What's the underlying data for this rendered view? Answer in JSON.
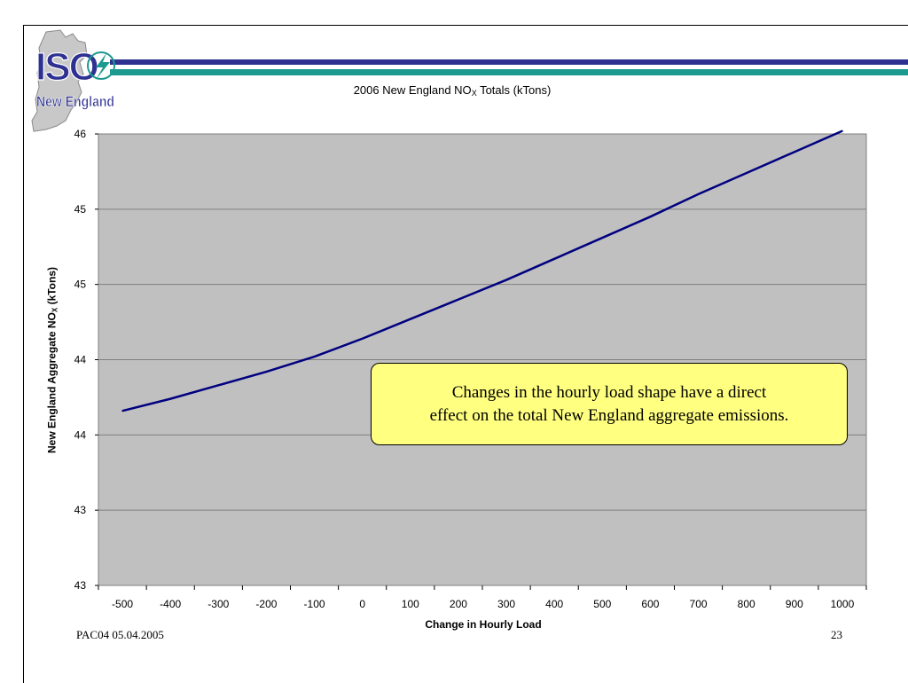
{
  "logo": {
    "top_text": "ISO",
    "bottom_text": "New England",
    "colors": {
      "map": "#c8c8c8",
      "blue": "#2e3192",
      "teal": "#1d9a8f"
    }
  },
  "chart_data": {
    "type": "line",
    "title": "2006 New England NOx Totals (kTons)",
    "title_parts": {
      "pre": "2006 New England NO",
      "sub": "X",
      "post": " Totals (kTons)"
    },
    "xlabel": "Change in Hourly Load",
    "ylabel": "New England Aggregate NOx (kTons)",
    "ylabel_parts": {
      "pre": "New England Aggregate NO",
      "sub": "X",
      "post": " (kTons)"
    },
    "x_tick_labels": [
      "-500",
      "-400",
      "-300",
      "-200",
      "-100",
      "0",
      "100",
      "200",
      "300",
      "400",
      "500",
      "600",
      "700",
      "800",
      "900",
      "1000"
    ],
    "y_tick_labels": [
      "46",
      "45",
      "45",
      "44",
      "44",
      "43",
      "43"
    ],
    "y_tick_values": [
      46.0,
      45.5,
      45.0,
      44.5,
      44.0,
      43.5,
      43.0
    ],
    "ylim": [
      43.0,
      46.0
    ],
    "grid": true,
    "plot_background": "#c0c0c0",
    "line_color": "#000080",
    "series": [
      {
        "x": [
          -500,
          -400,
          -300,
          -200,
          -100,
          0,
          100,
          200,
          300,
          400,
          500,
          600,
          700,
          800,
          900,
          1000
        ],
        "y": [
          44.16,
          44.24,
          44.33,
          44.42,
          44.52,
          44.64,
          44.77,
          44.9,
          45.03,
          45.17,
          45.31,
          45.45,
          45.6,
          45.74,
          45.88,
          46.02
        ]
      }
    ]
  },
  "callout": {
    "line1": "Changes in the hourly load shape have a direct",
    "line2": "effect on the total New England aggregate emissions.",
    "background": "#ffff80"
  },
  "footer": {
    "left": "PAC04 05.04.2005",
    "page_number": "23"
  }
}
